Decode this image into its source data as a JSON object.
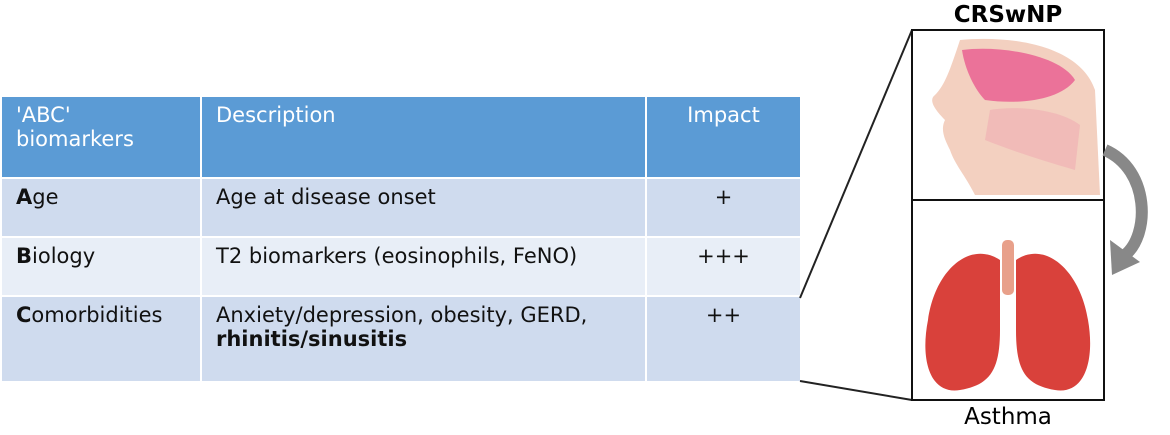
{
  "table": {
    "header": [
      "'ABC' biomarkers",
      "Description",
      "Impact"
    ],
    "rows": [
      [
        {
          "bold": "A",
          "rest": "ge"
        },
        {
          "text": "Age at disease onset"
        },
        "+"
      ],
      [
        {
          "bold": "B",
          "rest": "iology"
        },
        {
          "text": "T2 biomarkers (eosinophils, FeNO)"
        },
        "+++"
      ],
      [
        {
          "bold": "C",
          "rest": "omorbidities"
        },
        {
          "text": "Anxiety/depression, obesity, GERD,",
          "bold": "rhinitis/sinusitis"
        },
        "++"
      ]
    ]
  },
  "figure": {
    "top_label": "CRSwNP",
    "bottom_label": "Asthma"
  }
}
